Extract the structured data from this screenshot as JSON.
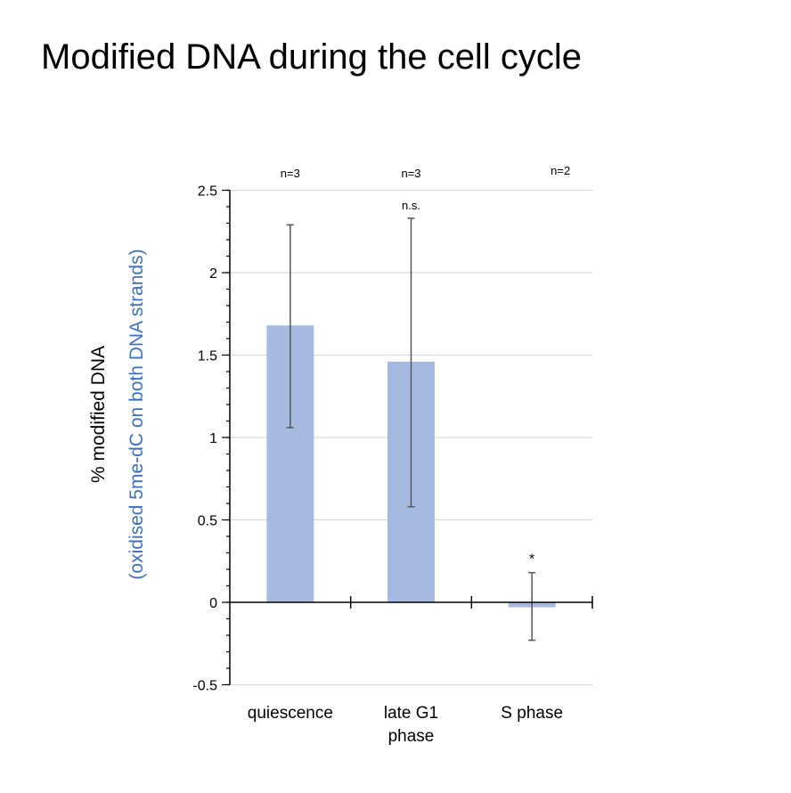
{
  "chart_data": {
    "type": "bar",
    "title": "Modified DNA during the cell cycle",
    "ylabel": "% modified DNA",
    "ylabel_secondary": "(oxidised 5me-dC on both DNA strands)",
    "categories": [
      "quiescence",
      "late G1 phase",
      "S phase"
    ],
    "category_lines": [
      [
        "quiescence"
      ],
      [
        "late G1",
        "phase"
      ],
      [
        "S phase"
      ]
    ],
    "values": [
      1.68,
      1.46,
      -0.03
    ],
    "error_high": [
      2.29,
      2.33,
      0.18
    ],
    "error_low": [
      1.06,
      0.58,
      -0.23
    ],
    "n_labels": [
      "n=3",
      "n=3",
      "n=2"
    ],
    "significance": [
      "",
      "n.s.",
      "*"
    ],
    "ylim": [
      -0.5,
      2.5
    ],
    "yticks": [
      "-0.5",
      "0",
      "0.5",
      "1",
      "1.5",
      "2",
      "2.5"
    ],
    "grid": true,
    "colors": {
      "bar": "#a6b9e0",
      "ylabel_secondary": "#3b6fc4",
      "error": "#555555"
    }
  }
}
